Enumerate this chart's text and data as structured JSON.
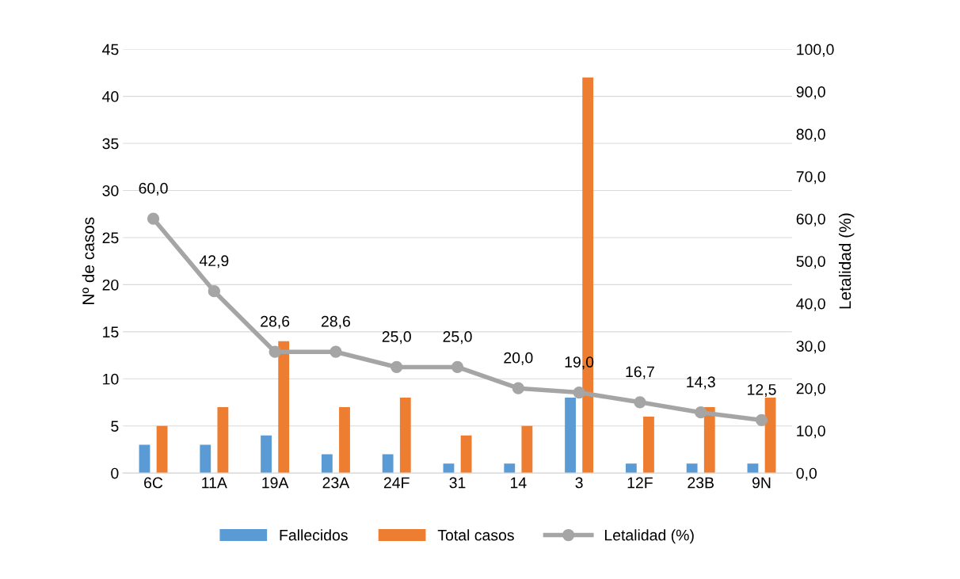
{
  "chart_data": {
    "type": "bar",
    "ylabel": "Nº de casos",
    "y2label": "Letalidad (%)",
    "categories": [
      "6C",
      "11A",
      "19A",
      "23A",
      "24F",
      "31",
      "14",
      "3",
      "12F",
      "23B",
      "9N"
    ],
    "series": [
      {
        "name": "Fallecidos",
        "color": "#5b9bd5",
        "values": [
          3,
          3,
          4,
          2,
          2,
          1,
          1,
          8,
          1,
          1,
          1
        ]
      },
      {
        "name": "Total casos",
        "color": "#ed7d31",
        "values": [
          5,
          7,
          14,
          7,
          8,
          4,
          5,
          42,
          6,
          7,
          8
        ]
      },
      {
        "name": "Letalidad (%)",
        "type": "line",
        "axis": "y2",
        "color": "#a5a5a5",
        "marker": "circle",
        "values": [
          60.0,
          42.9,
          28.6,
          28.6,
          25.0,
          25.0,
          20.0,
          19.0,
          16.7,
          14.3,
          12.5
        ],
        "value_labels": [
          "60,0",
          "42,9",
          "28,6",
          "28,6",
          "25,0",
          "25,0",
          "20,0",
          "19,0",
          "16,7",
          "14,3",
          "12,5"
        ]
      }
    ],
    "ylim": [
      0,
      45
    ],
    "yticks": [
      0,
      5,
      10,
      15,
      20,
      25,
      30,
      35,
      40,
      45
    ],
    "y2lim": [
      0,
      100
    ],
    "y2ticks": [
      {
        "value": 0,
        "label": "0,0"
      },
      {
        "value": 10,
        "label": "10,0"
      },
      {
        "value": 20,
        "label": "20,0"
      },
      {
        "value": 30,
        "label": "30,0"
      },
      {
        "value": 40,
        "label": "40,0"
      },
      {
        "value": 50,
        "label": "50,0"
      },
      {
        "value": 60,
        "label": "60,0"
      },
      {
        "value": 70,
        "label": "70,0"
      },
      {
        "value": 80,
        "label": "80,0"
      },
      {
        "value": 90,
        "label": "90,0"
      },
      {
        "value": 100,
        "label": "100,0"
      }
    ],
    "grid": "y",
    "legend": "bottom"
  }
}
